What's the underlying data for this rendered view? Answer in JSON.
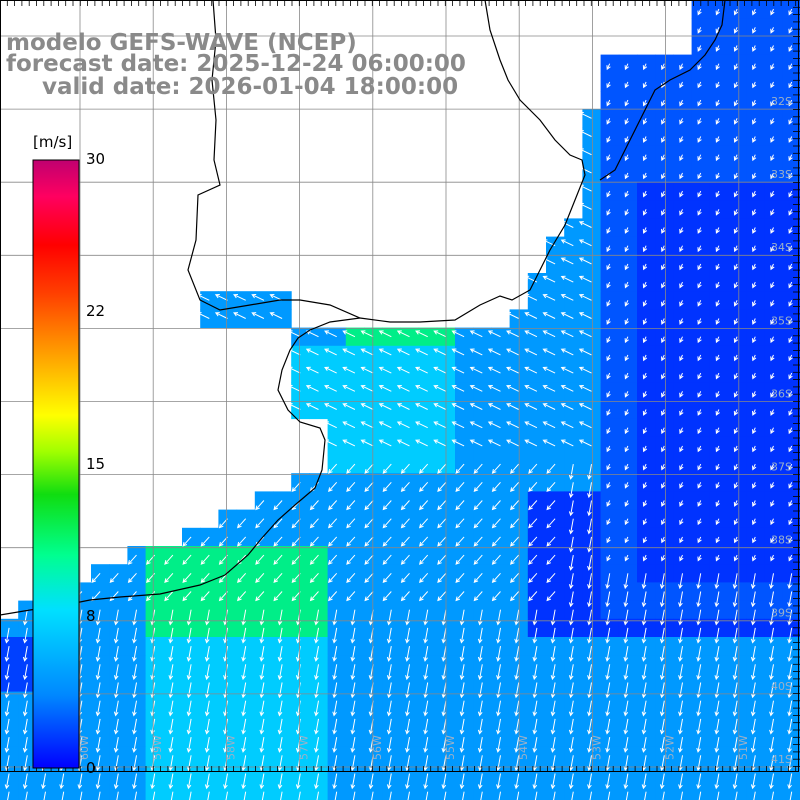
{
  "header": {
    "model": "modelo GEFS-WAVE (NCEP)",
    "forecast": "forecast date: 2025-12-24 06:00:00",
    "valid": "valid date: 2026-01-04 18:00:00"
  },
  "colorbar": {
    "unit": "[m/s]",
    "ticks": [
      "30",
      "22",
      "15",
      "8",
      "0"
    ],
    "tick_values": [
      30,
      22,
      15,
      8,
      0
    ],
    "colors": [
      "#0000ff",
      "#0088ff",
      "#00e0ff",
      "#00ff80",
      "#20e020",
      "#a0ff00",
      "#ffff00",
      "#ffa000",
      "#ff4000",
      "#ff0000",
      "#ff0060",
      "#c00070"
    ]
  },
  "map": {
    "lat_labels": [
      "32S",
      "33S",
      "34S",
      "35S",
      "36S",
      "37S",
      "38S",
      "39S",
      "40S",
      "41S"
    ],
    "lon_labels": [
      "60W",
      "59W",
      "58W",
      "57W",
      "56W",
      "55W",
      "54W",
      "53W",
      "52W",
      "51W"
    ],
    "field": "wind speed [m/s]",
    "colors": {
      "deep": "#0033ff",
      "mid": "#0099ff",
      "light": "#00ccff",
      "green": "#00ee88",
      "coast": "#000000",
      "grid": "#888888",
      "land": "#ffffff"
    }
  }
}
